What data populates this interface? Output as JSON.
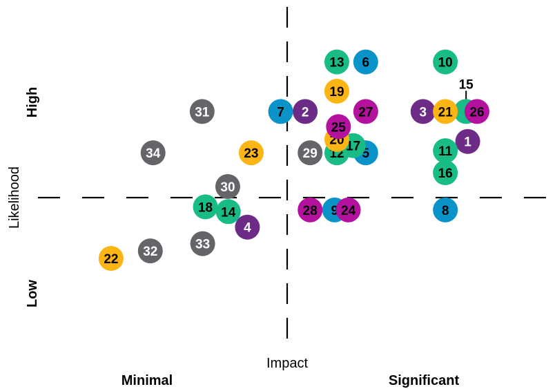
{
  "chart_data": {
    "type": "scatter",
    "title": "",
    "xlabel": "Impact",
    "ylabel": "Likelihood",
    "x_low_label": "Minimal",
    "x_high_label": "Significant",
    "y_low_label": "Low",
    "y_high_label": "High",
    "xlim": [
      0,
      100
    ],
    "ylim": [
      0,
      100
    ],
    "midpoint": {
      "x": 50,
      "y": 50
    },
    "grid": false,
    "legend": "none",
    "colors": {
      "gray": "#636569",
      "blue": "#0a93c8",
      "green": "#19bb86",
      "yellow": "#fdb515",
      "purple": "#6c2b86",
      "magenta": "#b4119e",
      "axis": "#000000"
    },
    "points": [
      {
        "id": "1",
        "x": 84.5,
        "y": 60.9,
        "color": "purple",
        "text": "white"
      },
      {
        "id": "2",
        "x": 54.7,
        "y": 69.6,
        "color": "purple",
        "text": "white"
      },
      {
        "id": "3",
        "x": 76.3,
        "y": 69.6,
        "color": "purple",
        "text": "white"
      },
      {
        "id": "4",
        "x": 44.1,
        "y": 36.0,
        "color": "purple",
        "text": "white"
      },
      {
        "id": "5",
        "x": 65.8,
        "y": 57.6,
        "color": "blue",
        "text": "black"
      },
      {
        "id": "6",
        "x": 65.8,
        "y": 84.0,
        "color": "blue",
        "text": "black"
      },
      {
        "id": "7",
        "x": 50.2,
        "y": 69.6,
        "color": "blue",
        "text": "black"
      },
      {
        "id": "8",
        "x": 80.4,
        "y": 41.0,
        "color": "blue",
        "text": "black"
      },
      {
        "id": "9",
        "x": 60.1,
        "y": 41.0,
        "color": "blue",
        "text": "black"
      },
      {
        "id": "10",
        "x": 80.4,
        "y": 84.0,
        "color": "green",
        "text": "black"
      },
      {
        "id": "11",
        "x": 80.4,
        "y": 58.2,
        "color": "green",
        "text": "black"
      },
      {
        "id": "12",
        "x": 60.5,
        "y": 57.6,
        "color": "green",
        "text": "black"
      },
      {
        "id": "13",
        "x": 60.5,
        "y": 84.0,
        "color": "green",
        "text": "black"
      },
      {
        "id": "14",
        "x": 40.6,
        "y": 40.5,
        "color": "green",
        "text": "black"
      },
      {
        "id": "15",
        "x": 84.2,
        "y": 69.6,
        "color": "green",
        "text": "black",
        "label_offset": true
      },
      {
        "id": "16",
        "x": 80.4,
        "y": 51.8,
        "color": "green",
        "text": "black"
      },
      {
        "id": "17",
        "x": 63.5,
        "y": 59.7,
        "color": "green",
        "text": "black"
      },
      {
        "id": "18",
        "x": 36.4,
        "y": 41.9,
        "color": "green",
        "text": "black"
      },
      {
        "id": "19",
        "x": 60.5,
        "y": 75.5,
        "color": "yellow",
        "text": "black"
      },
      {
        "id": "20",
        "x": 60.5,
        "y": 61.5,
        "color": "yellow",
        "text": "black"
      },
      {
        "id": "21",
        "x": 80.4,
        "y": 69.6,
        "color": "yellow",
        "text": "black"
      },
      {
        "id": "22",
        "x": 19.1,
        "y": 26.9,
        "color": "yellow",
        "text": "black"
      },
      {
        "id": "23",
        "x": 44.8,
        "y": 57.6,
        "color": "yellow",
        "text": "black"
      },
      {
        "id": "24",
        "x": 62.6,
        "y": 41.0,
        "color": "magenta",
        "text": "black"
      },
      {
        "id": "25",
        "x": 60.8,
        "y": 65.2,
        "color": "magenta",
        "text": "black"
      },
      {
        "id": "26",
        "x": 86.2,
        "y": 69.6,
        "color": "magenta",
        "text": "black"
      },
      {
        "id": "27",
        "x": 65.8,
        "y": 69.6,
        "color": "magenta",
        "text": "black"
      },
      {
        "id": "28",
        "x": 55.6,
        "y": 41.0,
        "color": "magenta",
        "text": "black"
      },
      {
        "id": "29",
        "x": 55.6,
        "y": 57.6,
        "color": "gray",
        "text": "white"
      },
      {
        "id": "30",
        "x": 40.5,
        "y": 47.8,
        "color": "gray",
        "text": "white"
      },
      {
        "id": "31",
        "x": 35.8,
        "y": 69.6,
        "color": "gray",
        "text": "white"
      },
      {
        "id": "32",
        "x": 26.3,
        "y": 29.1,
        "color": "gray",
        "text": "white"
      },
      {
        "id": "33",
        "x": 35.9,
        "y": 31.2,
        "color": "gray",
        "text": "white"
      },
      {
        "id": "34",
        "x": 26.8,
        "y": 57.6,
        "color": "gray",
        "text": "white"
      }
    ]
  }
}
